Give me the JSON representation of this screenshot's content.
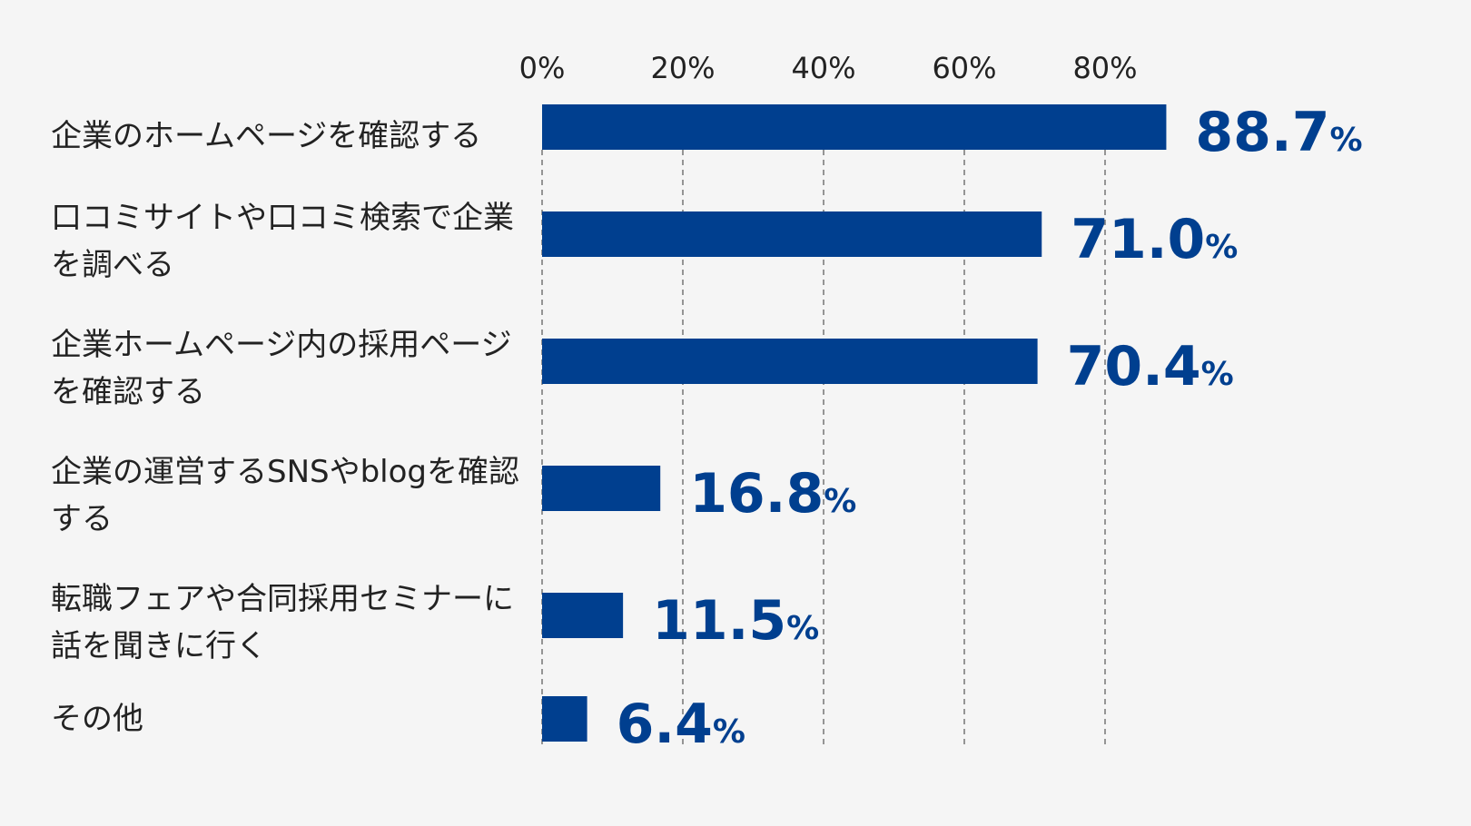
{
  "chart_data": {
    "type": "bar",
    "orientation": "horizontal",
    "categories": [
      "企業のホームページを確認する",
      "口コミサイトや口コミ検索で企業を調べる",
      "企業ホームページ内の採用ページを確認する",
      "企業の運営するSNSやblogを確認する",
      "転職フェアや合同採用セミナーに話を聞きに行く",
      "その他"
    ],
    "values": [
      88.7,
      71.0,
      70.4,
      16.8,
      11.5,
      6.4
    ],
    "value_labels": [
      "88.7",
      "71.0",
      "70.4",
      "16.8",
      "11.5",
      "6.4"
    ],
    "value_suffix": "%",
    "x_ticks": [
      "0%",
      "20%",
      "40%",
      "60%",
      "80%"
    ],
    "x_tick_values": [
      0,
      20,
      40,
      60,
      80
    ],
    "xlim": [
      0,
      100
    ],
    "grid": "dashed vertical",
    "bar_color": "#003f8f",
    "value_label_color": "#003f8f",
    "text_color": "#222222",
    "background": "#f5f5f5"
  }
}
